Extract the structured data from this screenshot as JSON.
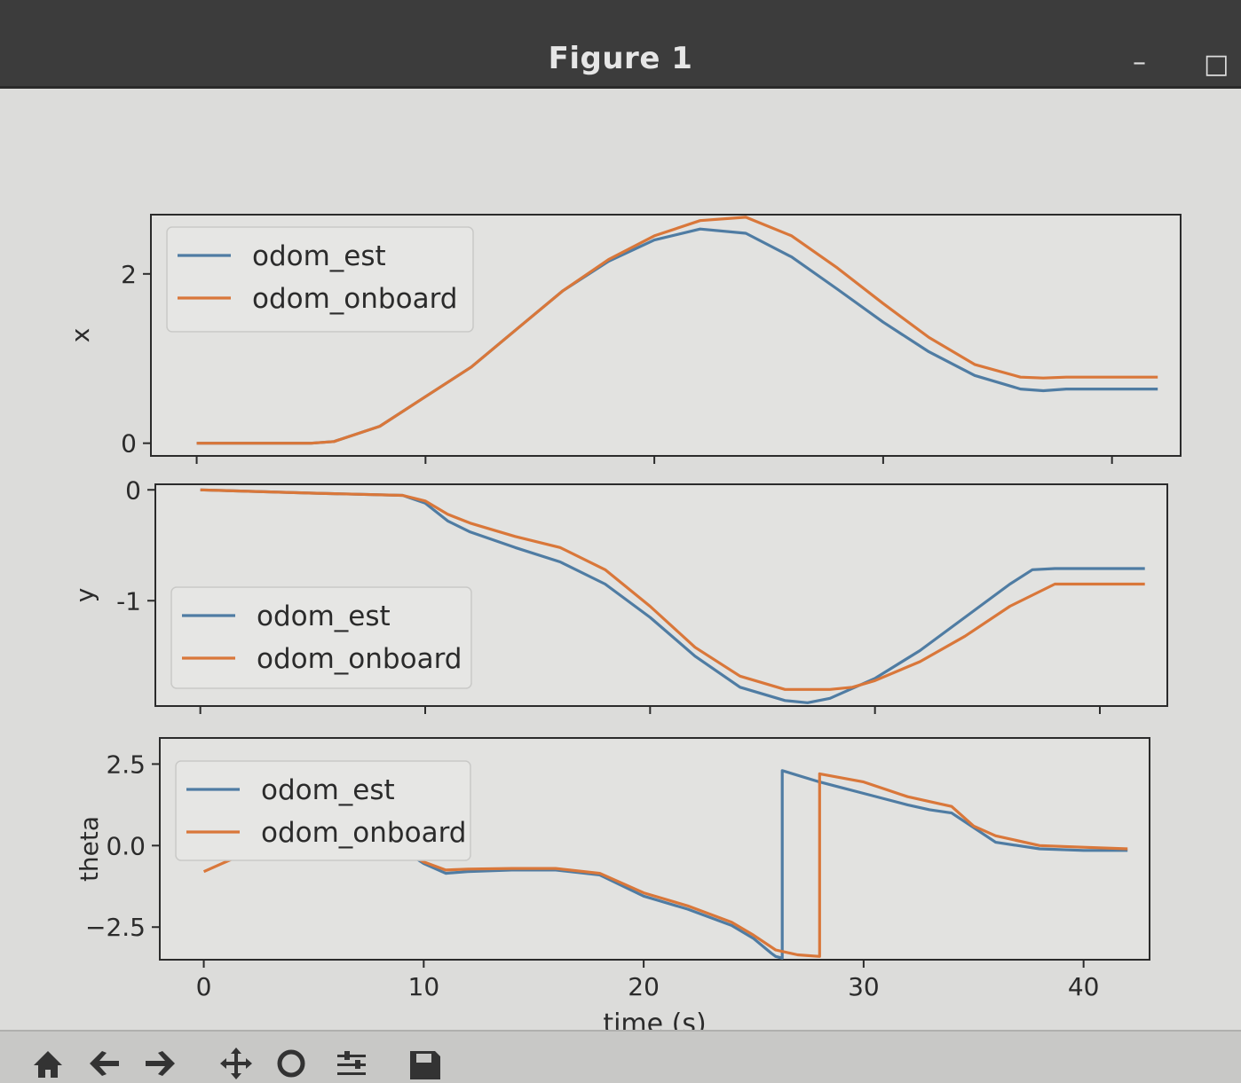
{
  "window": {
    "title": "Figure 1",
    "minimize_glyph": "–",
    "maximize_glyph": "□"
  },
  "toolbar": {
    "buttons": [
      {
        "name": "home-icon"
      },
      {
        "name": "back-icon"
      },
      {
        "name": "forward-icon"
      },
      {
        "name": "pan-icon"
      },
      {
        "name": "zoom-icon"
      },
      {
        "name": "configure-subplots-icon"
      },
      {
        "name": "save-icon"
      }
    ]
  },
  "colors": {
    "odom_est": "#4f7ca3",
    "odom_onboard": "#d9773a",
    "axes_bg": "#e2e2e0"
  },
  "chart_data": [
    {
      "type": "line",
      "ylabel": "x",
      "xlim": [
        -2,
        43
      ],
      "ylim": [
        -0.15,
        2.7
      ],
      "yticks": [
        0,
        2
      ],
      "xtick_labels_visible": false,
      "legend_placement": "upper-left",
      "series": [
        {
          "name": "odom_est",
          "x": [
            0,
            5,
            6,
            8,
            10,
            12,
            14,
            16,
            18,
            20,
            22,
            24,
            26,
            28,
            30,
            32,
            34,
            36,
            37,
            38,
            40,
            42
          ],
          "y": [
            0,
            0,
            0.02,
            0.2,
            0.55,
            0.9,
            1.35,
            1.8,
            2.15,
            2.4,
            2.53,
            2.48,
            2.2,
            1.82,
            1.43,
            1.08,
            0.8,
            0.64,
            0.62,
            0.64,
            0.64,
            0.64
          ]
        },
        {
          "name": "odom_onboard",
          "x": [
            0,
            5,
            6,
            8,
            10,
            12,
            14,
            16,
            18,
            20,
            22,
            24,
            26,
            28,
            30,
            32,
            34,
            36,
            37,
            38,
            40,
            42
          ],
          "y": [
            0,
            0,
            0.02,
            0.2,
            0.55,
            0.9,
            1.35,
            1.8,
            2.17,
            2.45,
            2.63,
            2.67,
            2.45,
            2.07,
            1.65,
            1.25,
            0.93,
            0.78,
            0.77,
            0.78,
            0.78,
            0.78
          ]
        }
      ]
    },
    {
      "type": "line",
      "ylabel": "y",
      "xlim": [
        -2,
        43
      ],
      "ylim": [
        -1.95,
        0.05
      ],
      "yticks": [
        0,
        -1
      ],
      "xtick_labels_visible": false,
      "legend_placement": "lower-left",
      "series": [
        {
          "name": "odom_est",
          "x": [
            0,
            5,
            9,
            10,
            11,
            12,
            14,
            16,
            18,
            20,
            22,
            24,
            26,
            27,
            28,
            30,
            32,
            34,
            36,
            37,
            38,
            40,
            42
          ],
          "y": [
            0,
            -0.03,
            -0.05,
            -0.12,
            -0.28,
            -0.38,
            -0.52,
            -0.65,
            -0.85,
            -1.15,
            -1.5,
            -1.78,
            -1.9,
            -1.92,
            -1.88,
            -1.7,
            -1.45,
            -1.15,
            -0.85,
            -0.72,
            -0.71,
            -0.71,
            -0.71
          ]
        },
        {
          "name": "odom_onboard",
          "x": [
            0,
            5,
            9,
            10,
            11,
            12,
            14,
            16,
            18,
            20,
            22,
            24,
            26,
            28,
            29,
            30,
            32,
            34,
            36,
            38,
            40,
            42
          ],
          "y": [
            0,
            -0.03,
            -0.05,
            -0.1,
            -0.22,
            -0.3,
            -0.42,
            -0.52,
            -0.72,
            -1.05,
            -1.42,
            -1.68,
            -1.8,
            -1.8,
            -1.78,
            -1.72,
            -1.55,
            -1.32,
            -1.05,
            -0.85,
            -0.85,
            -0.85
          ]
        }
      ]
    },
    {
      "type": "line",
      "ylabel": "theta",
      "xlabel": "time (s)",
      "xlim": [
        -2,
        43
      ],
      "ylim": [
        -3.5,
        3.3
      ],
      "yticks": [
        2.5,
        0.0,
        -2.5
      ],
      "ytick_labels": [
        "2.5",
        "0.0",
        "−2.5"
      ],
      "xticks": [
        0,
        10,
        20,
        30,
        40
      ],
      "xtick_labels": [
        "0",
        "10",
        "20",
        "30",
        "40"
      ],
      "legend_placement": "upper-left",
      "series": [
        {
          "name": "odom_est",
          "x": [
            0,
            4,
            9,
            10,
            11,
            12,
            14,
            16,
            18,
            20,
            22,
            24,
            25,
            25.8,
            26,
            26.3,
            26.3,
            28,
            30,
            32,
            33,
            34,
            35,
            36,
            38,
            40,
            42
          ],
          "y": [
            0,
            0,
            -0.1,
            -0.55,
            -0.85,
            -0.8,
            -0.75,
            -0.75,
            -0.9,
            -1.55,
            -1.95,
            -2.45,
            -2.85,
            -3.3,
            -3.4,
            -3.45,
            2.3,
            1.95,
            1.6,
            1.25,
            1.1,
            1.0,
            0.55,
            0.1,
            -0.1,
            -0.15,
            -0.15
          ]
        },
        {
          "name": "odom_onboard",
          "x": [
            0,
            2,
            4,
            9,
            10,
            11,
            12,
            14,
            16,
            18,
            20,
            22,
            24,
            25,
            26,
            27,
            28,
            28,
            30,
            32,
            34,
            35,
            36,
            38,
            40,
            42
          ],
          "y": [
            -0.8,
            -0.2,
            -0.1,
            -0.1,
            -0.5,
            -0.75,
            -0.72,
            -0.7,
            -0.7,
            -0.85,
            -1.45,
            -1.85,
            -2.35,
            -2.75,
            -3.2,
            -3.35,
            -3.4,
            2.2,
            1.95,
            1.5,
            1.2,
            0.6,
            0.3,
            0.0,
            -0.05,
            -0.1
          ]
        }
      ]
    }
  ]
}
